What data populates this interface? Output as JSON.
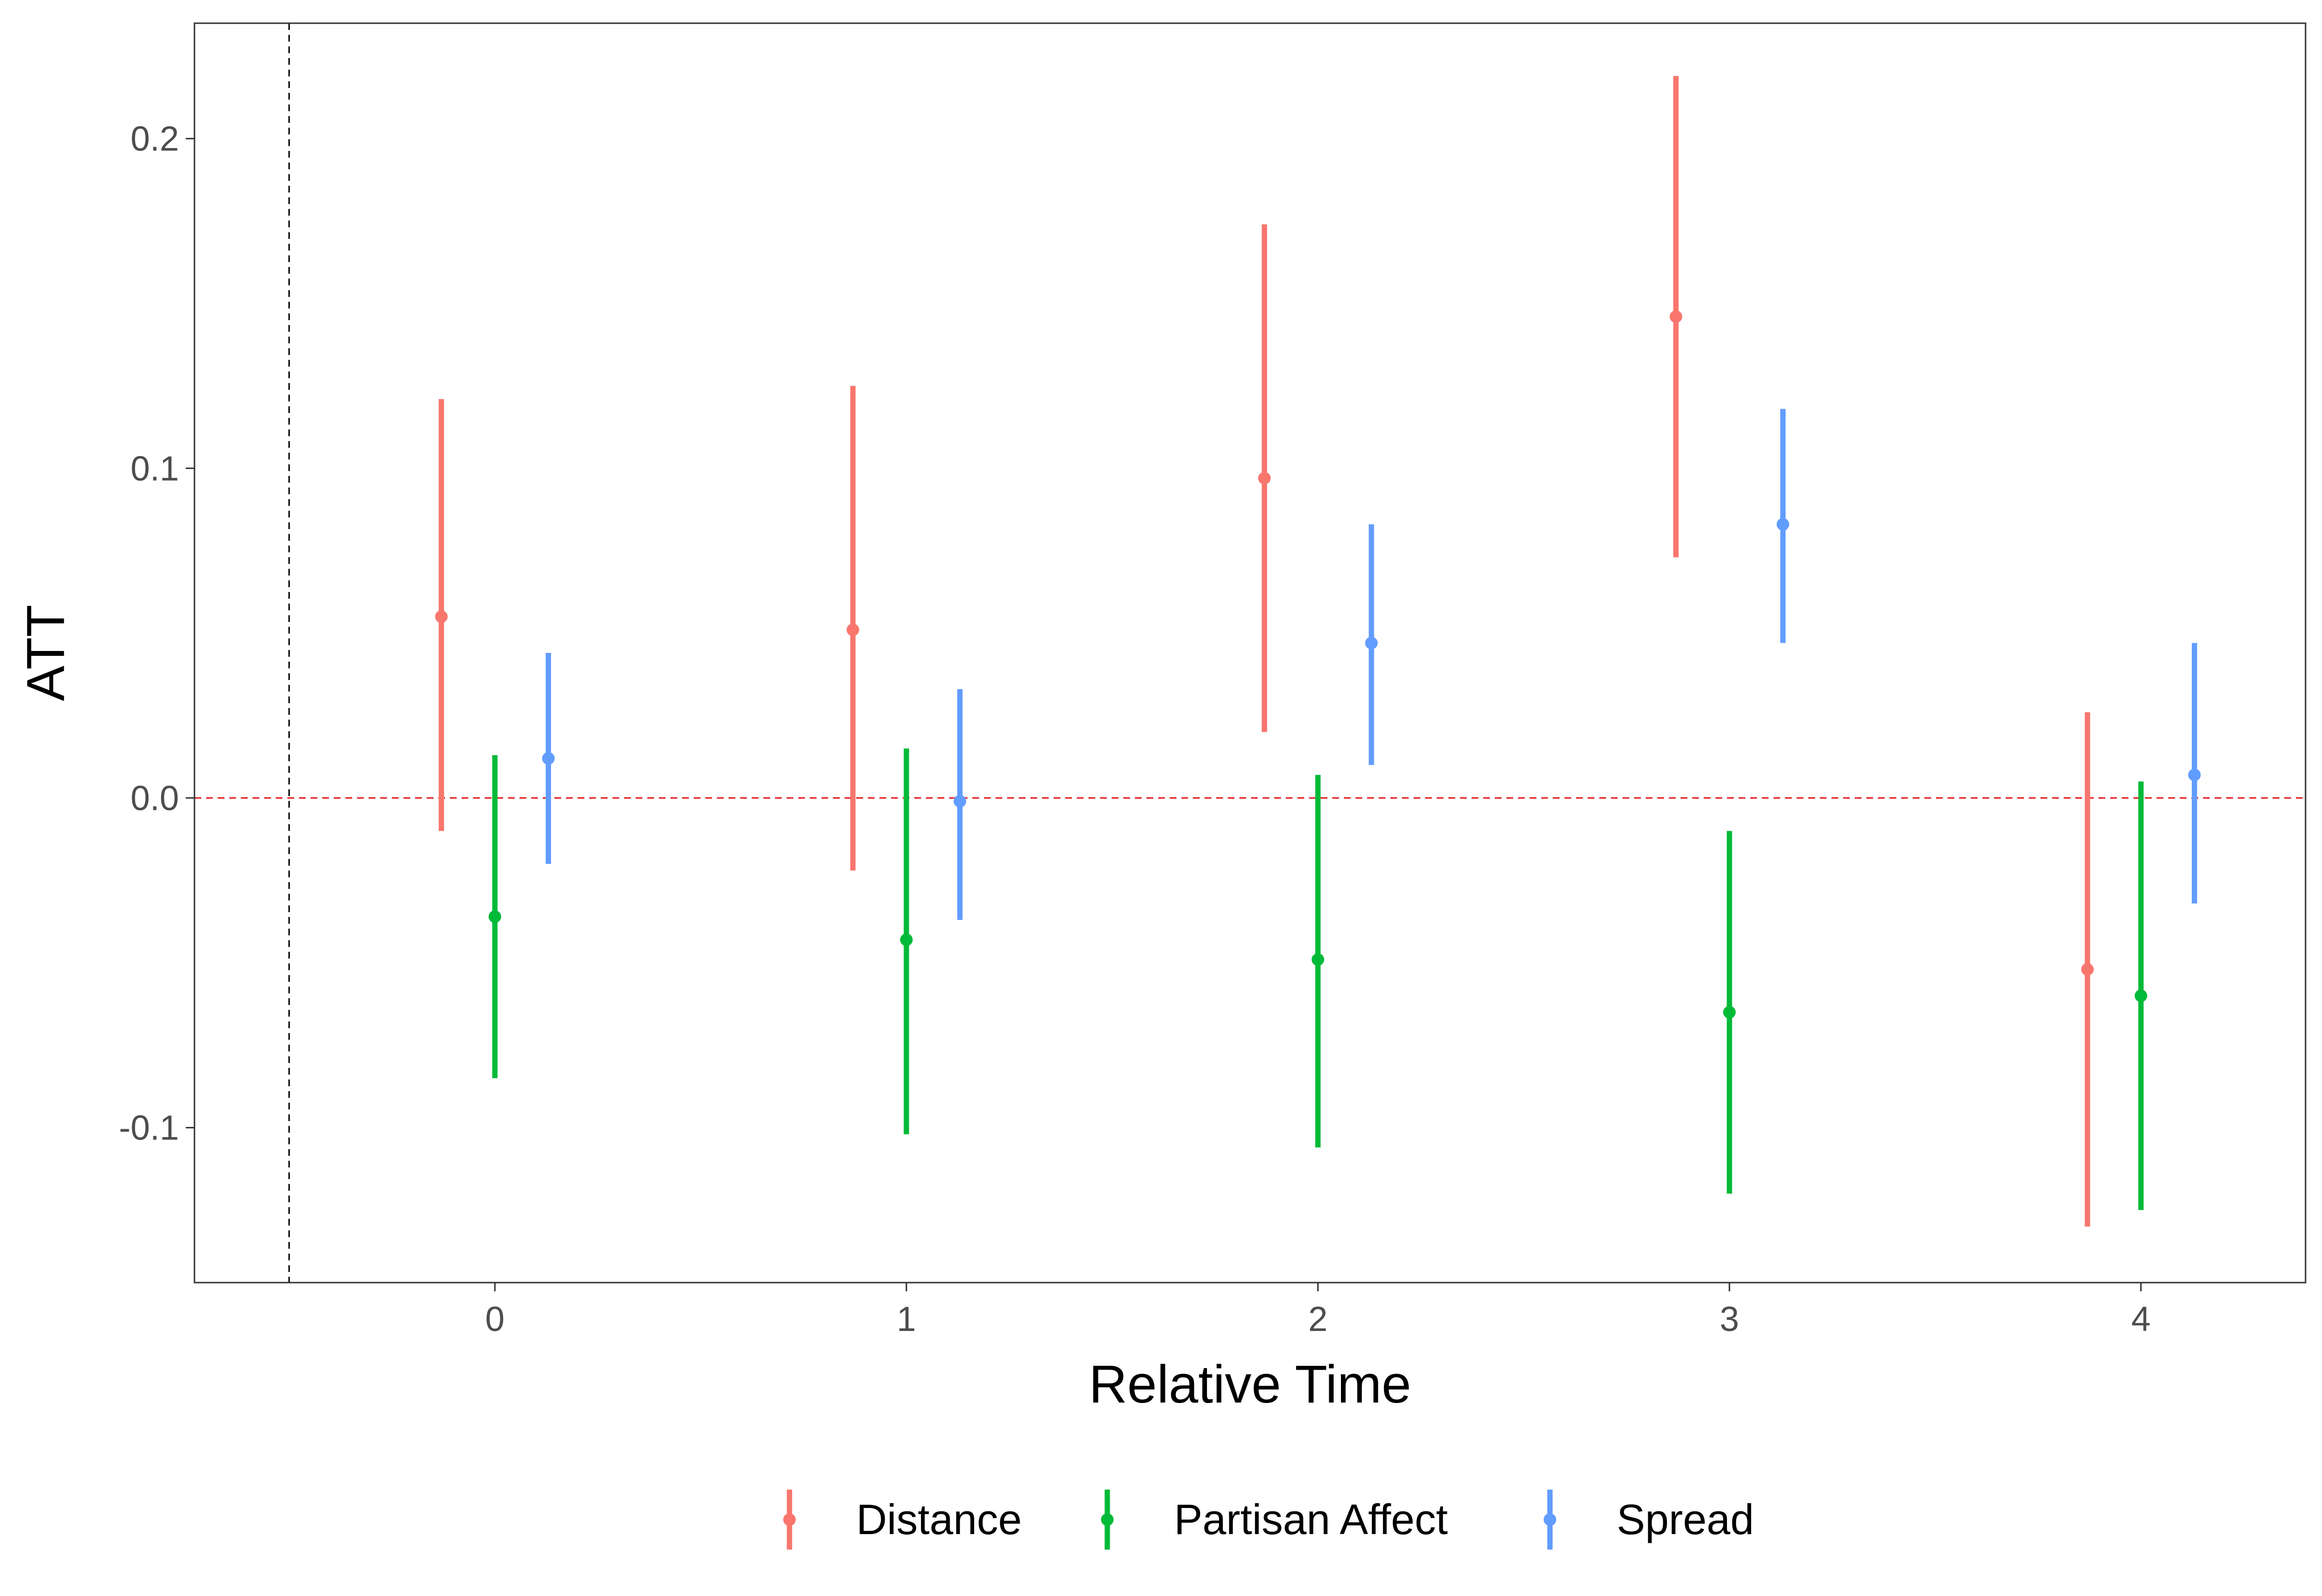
{
  "chart_data": {
    "type": "scatter",
    "subtype": "point-range (estimate with confidence interval)",
    "title": "",
    "xlabel": "Relative Time",
    "ylabel": "ATT",
    "categories": [
      "0",
      "1",
      "2",
      "3",
      "4"
    ],
    "x": [
      0,
      1,
      2,
      3,
      4
    ],
    "xlim": [
      -0.73,
      4.4
    ],
    "ylim": [
      -0.147,
      0.235
    ],
    "y_ticks": [
      -0.1,
      0.0,
      0.1,
      0.2
    ],
    "y_tick_labels": [
      "-0.1",
      "0.0",
      "0.1",
      "0.2"
    ],
    "grid": false,
    "legend_position": "bottom",
    "reference_lines": [
      {
        "axis": "y",
        "value": 0.0,
        "style": "dashed",
        "color": "#e41a1c"
      },
      {
        "axis": "x",
        "value": -0.5,
        "style": "dashed",
        "color": "#000000"
      }
    ],
    "dodge": 0.13,
    "series": [
      {
        "name": "Distance",
        "color": "#F8766D",
        "estimates": [
          0.055,
          0.051,
          0.097,
          0.146,
          -0.052
        ],
        "lower": [
          -0.01,
          -0.022,
          0.02,
          0.073,
          -0.13
        ],
        "upper": [
          0.121,
          0.125,
          0.174,
          0.219,
          0.026
        ]
      },
      {
        "name": "Partisan Affect",
        "color": "#00BA38",
        "estimates": [
          -0.036,
          -0.043,
          -0.049,
          -0.065,
          -0.06
        ],
        "lower": [
          -0.085,
          -0.102,
          -0.106,
          -0.12,
          -0.125
        ],
        "upper": [
          0.013,
          0.015,
          0.007,
          -0.01,
          0.005
        ]
      },
      {
        "name": "Spread",
        "color": "#619CFF",
        "estimates": [
          0.012,
          -0.001,
          0.047,
          0.083,
          0.007
        ],
        "lower": [
          -0.02,
          -0.037,
          0.01,
          0.047,
          -0.032
        ],
        "upper": [
          0.044,
          0.033,
          0.083,
          0.118,
          0.047
        ]
      }
    ]
  }
}
